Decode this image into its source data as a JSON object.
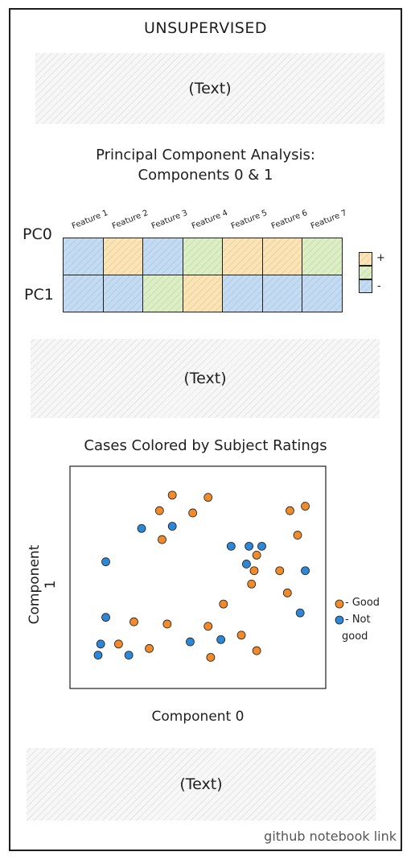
{
  "header": {
    "title": "UNSUPERVISED"
  },
  "placeholders": [
    "(Text)",
    "(Text)",
    "(Text)"
  ],
  "pca": {
    "title_line1": "Principal Component Analysis:",
    "title_line2": "Components 0 & 1",
    "features": [
      "Feature 1",
      "Feature 2",
      "Feature 3",
      "Feature 4",
      "Feature 5",
      "Feature 6",
      "Feature 7"
    ],
    "rows": [
      {
        "label": "PC0",
        "signs": [
          "-",
          "+",
          "-",
          "0",
          "+",
          "+",
          "0"
        ]
      },
      {
        "label": "PC1",
        "signs": [
          "-",
          "-",
          "0",
          "+",
          "-",
          "-",
          "-"
        ]
      }
    ],
    "legend": {
      "plus": "+",
      "minus": "-"
    },
    "colors": {
      "+": "#fbe3b4",
      "0": "#dcefc4",
      "-": "#c4dcf3"
    }
  },
  "chart_data": {
    "type": "scatter",
    "title": "Cases Colored by Subject Ratings",
    "xlabel": "Component 0",
    "ylabel": "Component 1",
    "xlim": [
      0,
      100
    ],
    "ylim": [
      0,
      100
    ],
    "legend": "right",
    "series": [
      {
        "name": "Good",
        "color": "#f08a2a",
        "points": [
          [
            40,
            87
          ],
          [
            35,
            80
          ],
          [
            48,
            79
          ],
          [
            54,
            86
          ],
          [
            36,
            67
          ],
          [
            25,
            30
          ],
          [
            38,
            29
          ],
          [
            19,
            20
          ],
          [
            31,
            18
          ],
          [
            54,
            28
          ],
          [
            55,
            14
          ],
          [
            60,
            38
          ],
          [
            67,
            24
          ],
          [
            71,
            47
          ],
          [
            72,
            53
          ],
          [
            73,
            60
          ],
          [
            82,
            53
          ],
          [
            86,
            80
          ],
          [
            89,
            69
          ],
          [
            92,
            82
          ],
          [
            73,
            17
          ],
          [
            85,
            43
          ]
        ]
      },
      {
        "name": "Not good",
        "color": "#2e86d6",
        "points": [
          [
            28,
            72
          ],
          [
            40,
            73
          ],
          [
            14,
            57
          ],
          [
            14,
            32
          ],
          [
            12,
            20
          ],
          [
            11,
            15
          ],
          [
            23,
            15
          ],
          [
            47,
            21
          ],
          [
            59,
            22
          ],
          [
            63,
            64
          ],
          [
            69,
            56
          ],
          [
            70,
            64
          ],
          [
            75,
            64
          ],
          [
            92,
            53
          ],
          [
            90,
            34
          ]
        ]
      }
    ]
  },
  "chart_legend": {
    "good": "Good",
    "not_good_line1": "Not",
    "not_good_line2": "good"
  },
  "footer": {
    "link": "github notebook link"
  }
}
